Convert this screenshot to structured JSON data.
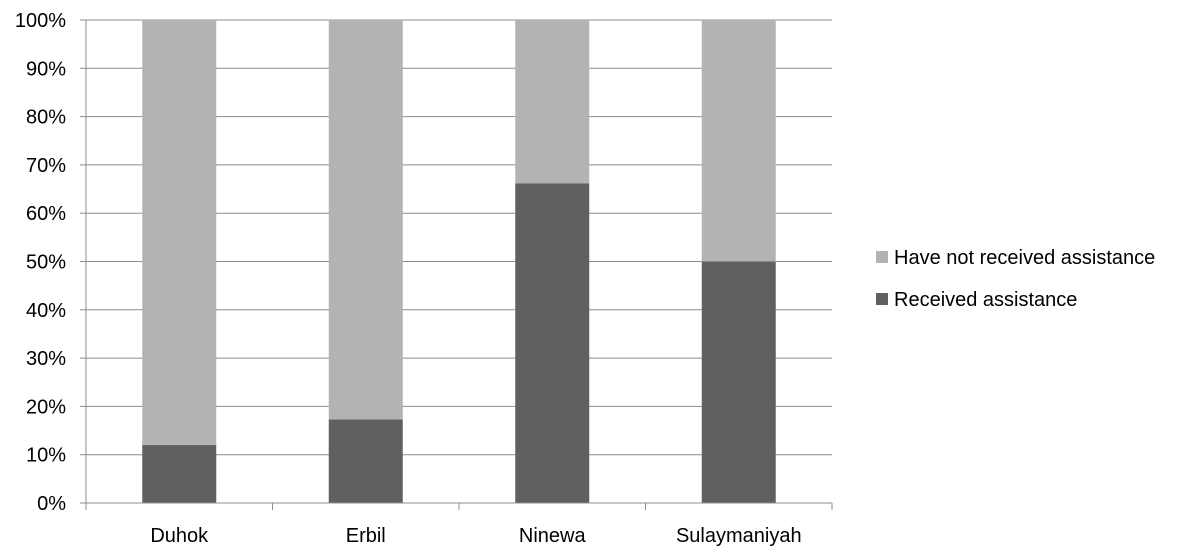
{
  "chart_data": {
    "type": "bar",
    "stacked": "percent",
    "title": "",
    "xlabel": "",
    "ylabel": "",
    "categories": [
      "Duhok",
      "Erbil",
      "Ninewa",
      "Sulaymaniyah"
    ],
    "series": [
      {
        "name": "Received assistance",
        "values": [
          12,
          17.3,
          66.2,
          50
        ],
        "color": "#606060"
      },
      {
        "name": "Have not received assistance",
        "values": [
          88,
          82.7,
          33.8,
          50
        ],
        "color": "#b3b3b3"
      }
    ],
    "ylim": [
      0,
      100
    ],
    "yticks": [
      "0%",
      "10%",
      "20%",
      "30%",
      "40%",
      "50%",
      "60%",
      "70%",
      "80%",
      "90%",
      "100%"
    ],
    "grid": true,
    "legend_placement": "right"
  }
}
